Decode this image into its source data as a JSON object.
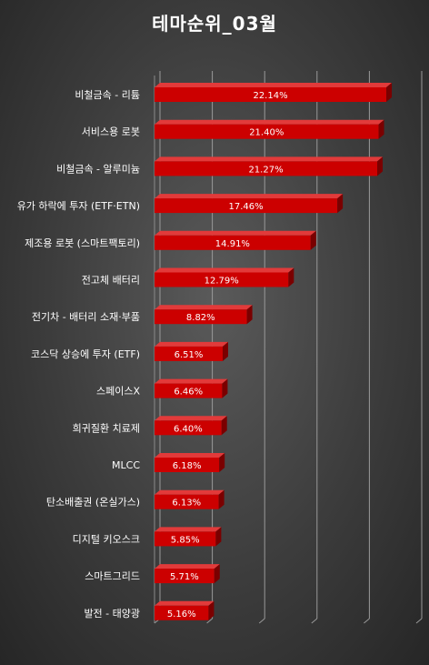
{
  "chart_data": {
    "type": "bar",
    "orientation": "horizontal",
    "style": "3d",
    "title": "테마순위_03월",
    "categories": [
      "비철금속 - 리튬",
      "서비스용 로봇",
      "비철금속 - 알루미늄",
      "유가 하락에 투자 (ETF·ETN)",
      "제조용 로봇 (스마트팩토리)",
      "전고체 배터리",
      "전기차 - 배터리 소재·부품",
      "코스닥 상승에 투자 (ETF)",
      "스페이스X",
      "희귀질환 치료제",
      "MLCC",
      "탄소배출권 (온실가스)",
      "디지털 키오스크",
      "스마트그리드",
      "발전 - 태양광"
    ],
    "values": [
      22.14,
      21.4,
      21.27,
      17.46,
      14.91,
      12.79,
      8.82,
      6.51,
      6.46,
      6.4,
      6.18,
      6.13,
      5.85,
      5.71,
      5.16
    ],
    "value_labels": [
      "22.14%",
      "21.40%",
      "21.27%",
      "17.46%",
      "14.91%",
      "12.79%",
      "8.82%",
      "6.51%",
      "6.46%",
      "6.40%",
      "6.18%",
      "6.13%",
      "5.85%",
      "5.71%",
      "5.16%"
    ],
    "xlim": [
      0,
      25
    ],
    "grid": true,
    "bar_color": "#cc0000",
    "background_color": "#444444"
  }
}
